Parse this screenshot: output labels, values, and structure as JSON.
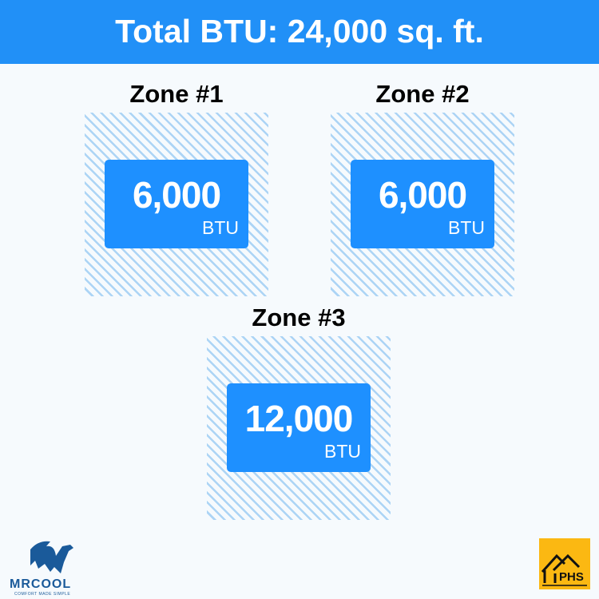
{
  "header": {
    "title": "Total BTU: 24,000 sq. ft."
  },
  "zones": [
    {
      "title": "Zone #1",
      "value": "6,000",
      "unit": "BTU"
    },
    {
      "title": "Zone #2",
      "value": "6,000",
      "unit": "BTU"
    },
    {
      "title": "Zone #3",
      "value": "12,000",
      "unit": "BTU"
    }
  ],
  "logos": {
    "left": "MRCOOL",
    "left_tagline": "COMFORT MADE SIMPLE",
    "right": "PHS"
  },
  "colors": {
    "header": "#2190f7",
    "box": "#1e90ff",
    "hatch": "#acd4f5",
    "phs": "#fbb812",
    "mrcool": "#1a5a9a"
  }
}
